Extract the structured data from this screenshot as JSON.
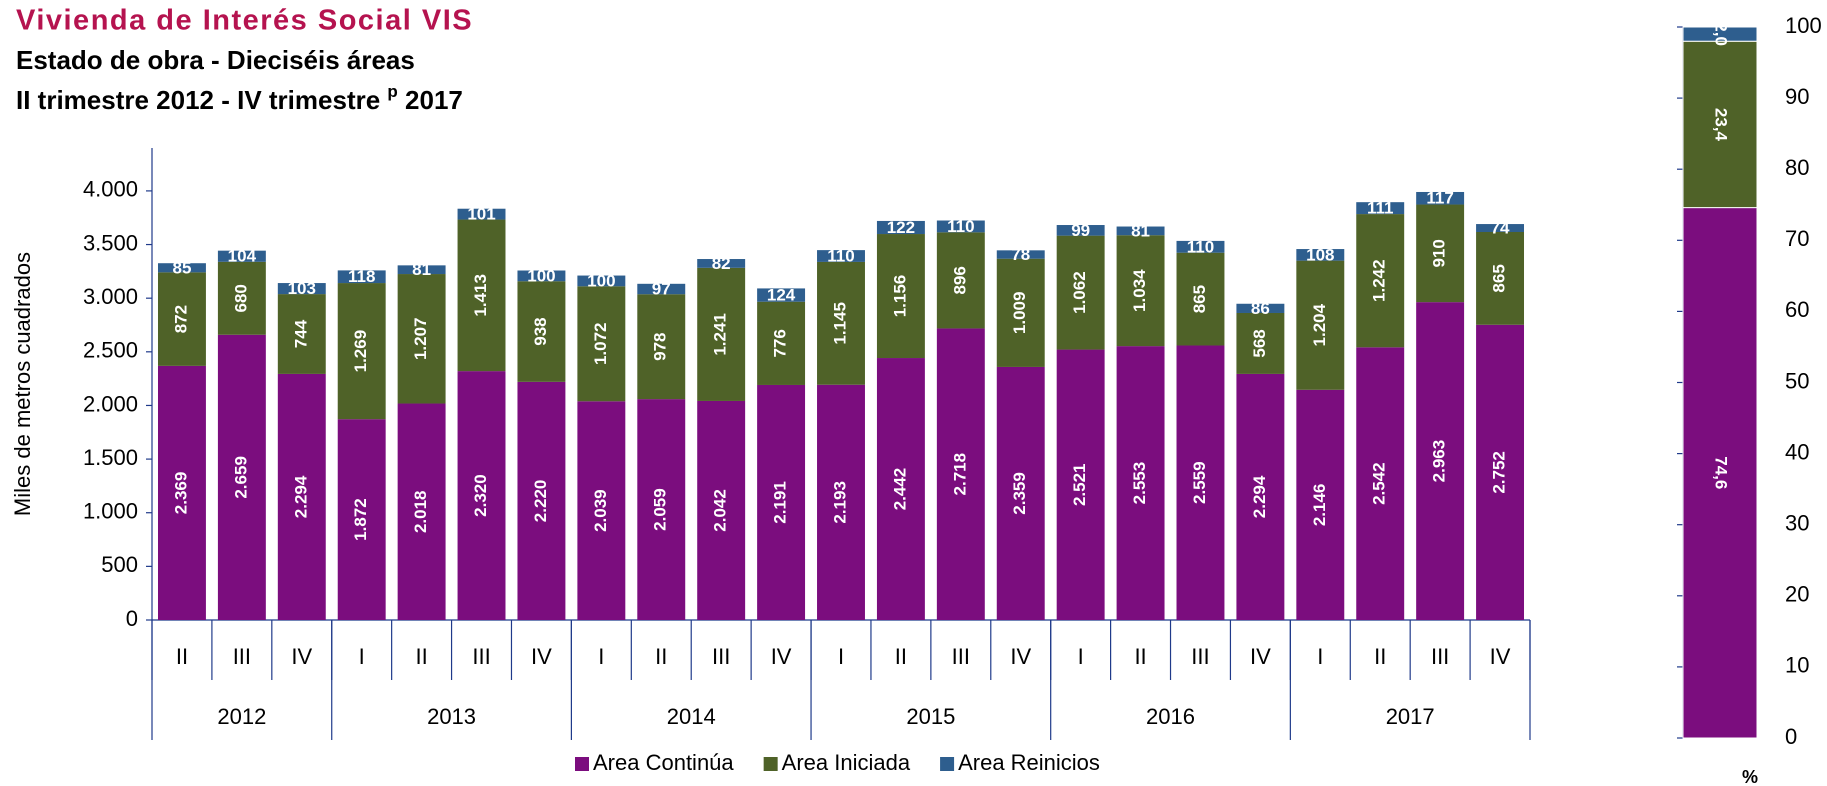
{
  "chart_data": [
    {
      "type": "stacked_bar",
      "title": "Vivienda de Interés Social VIS",
      "subtitle": "Estado de obra - Dieciséis áreas",
      "period": {
        "text_before": "II trimestre 2012 - IV trimestre",
        "superscript": "p",
        "text_after": "2017"
      },
      "ylabel": "Miles de metros cuadrados",
      "categories": [
        "II",
        "III",
        "IV",
        "I",
        "II",
        "III",
        "IV",
        "I",
        "II",
        "III",
        "IV",
        "I",
        "II",
        "III",
        "IV",
        "I",
        "II",
        "III",
        "IV",
        "I",
        "II",
        "III",
        "IV"
      ],
      "groups": [
        {
          "name": "2012",
          "size": 3
        },
        {
          "name": "2013",
          "size": 4
        },
        {
          "name": "2014",
          "size": 4
        },
        {
          "name": "2015",
          "size": 4
        },
        {
          "name": "2016",
          "size": 4
        },
        {
          "name": "2017",
          "size": 4
        }
      ],
      "series": [
        {
          "name": "Area Continúa",
          "color": "#7b0d7e",
          "values": [
            2369,
            2659,
            2294,
            1872,
            2018,
            2320,
            2220,
            2039,
            2059,
            2042,
            2191,
            2193,
            2442,
            2718,
            2359,
            2521,
            2553,
            2559,
            2294,
            2146,
            2542,
            2963,
            2752
          ],
          "value_labels": [
            "2.369",
            "2.659",
            "2.294",
            "1.872",
            "2.018",
            "2.320",
            "2.220",
            "2.039",
            "2.059",
            "2.042",
            "2.191",
            "2.193",
            "2.442",
            "2.718",
            "2.359",
            "2.521",
            "2.553",
            "2.559",
            "2.294",
            "2.146",
            "2.542",
            "2.963",
            "2.752"
          ]
        },
        {
          "name": "Area Iniciada",
          "color": "#4f6228",
          "values": [
            872,
            680,
            744,
            1269,
            1207,
            1413,
            938,
            1072,
            978,
            1241,
            776,
            1145,
            1156,
            896,
            1009,
            1062,
            1034,
            865,
            568,
            1204,
            1242,
            910,
            865
          ],
          "value_labels": [
            "872",
            "680",
            "744",
            "1.269",
            "1.207",
            "1.413",
            "938",
            "1.072",
            "978",
            "1.241",
            "776",
            "1.145",
            "1.156",
            "896",
            "1.009",
            "1.062",
            "1.034",
            "865",
            "568",
            "1.204",
            "1.242",
            "910",
            "865"
          ]
        },
        {
          "name": "Area Reinicios",
          "color": "#2e5e8e",
          "values": [
            85,
            104,
            103,
            118,
            81,
            101,
            100,
            100,
            97,
            82,
            124,
            110,
            122,
            110,
            78,
            99,
            81,
            110,
            86,
            108,
            111,
            117,
            74
          ]
        }
      ],
      "ylim": [
        0,
        4400
      ],
      "yticks": [
        0,
        500,
        {
          "value": 1000,
          "label": "1.000"
        },
        {
          "value": 1500,
          "label": "1.500"
        },
        {
          "value": 2000,
          "label": "2.000"
        },
        {
          "value": 2500,
          "label": "2.500"
        },
        {
          "value": 3000,
          "label": "3.000"
        },
        {
          "value": 3500,
          "label": "3.500"
        },
        {
          "value": 4000,
          "label": "4.000"
        }
      ],
      "legend": "bottom"
    },
    {
      "type": "stacked_bar_share",
      "xlabel": "%",
      "series": [
        {
          "name": "Area Continúa",
          "color": "#7b0d7e",
          "values": [
            74.6
          ],
          "value_labels": [
            "74,6"
          ]
        },
        {
          "name": "Area Iniciada",
          "color": "#4f6228",
          "values": [
            23.4
          ],
          "value_labels": [
            "23,4"
          ]
        },
        {
          "name": "Area Reinicios",
          "color": "#2e5e8e",
          "values": [
            2.0
          ],
          "value_labels": [
            "2,0"
          ]
        }
      ],
      "ylim": [
        0,
        100
      ],
      "yticks": [
        0,
        10,
        20,
        30,
        40,
        50,
        60,
        70,
        80,
        90,
        100
      ]
    }
  ]
}
